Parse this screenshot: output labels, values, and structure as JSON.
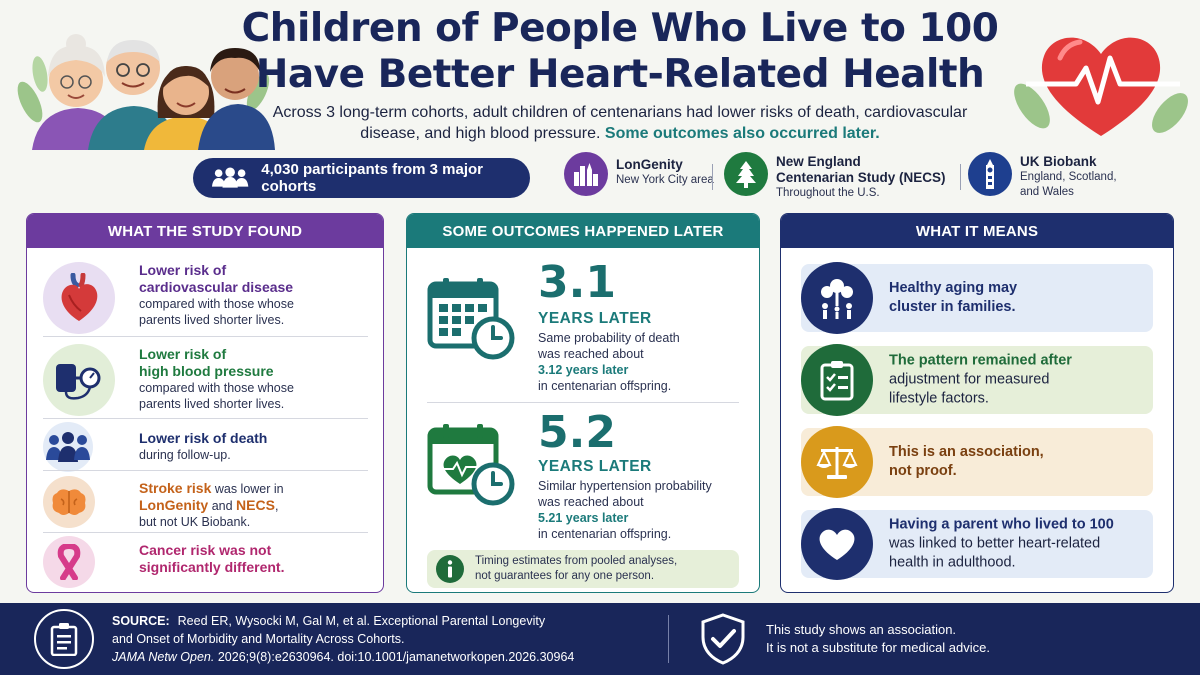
{
  "header": {
    "title_line1": "Children of People Who Live to 100",
    "title_line2": "Have Better Heart-Related Health",
    "subtitle_main": "Across 3 long-term cohorts, adult children of centenarians had lower risks of death, cardiovascular disease, and high blood pressure.",
    "subtitle_highlight": "Some outcomes also occurred later."
  },
  "cohorts": {
    "participants": "4,030 participants from 3 major cohorts",
    "items": [
      {
        "name": "LonGenity",
        "location": "New York City area",
        "icon": "city-skyline-icon",
        "color": "#6c3b9e"
      },
      {
        "name_line1": "New England",
        "name_line2": "Centenarian Study (NECS)",
        "location": "Throughout the U.S.",
        "icon": "pine-tree-icon",
        "color": "#1f7a3f"
      },
      {
        "name": "UK Biobank",
        "location_line1": "England, Scotland,",
        "location_line2": "and Wales",
        "icon": "big-ben-icon",
        "color": "#1e3f8f"
      }
    ]
  },
  "findings": {
    "title": "WHAT THE STUDY FOUND",
    "items": [
      {
        "bold_line1": "Lower risk of",
        "bold_line2": "cardiovascular disease",
        "desc_line1": "compared with those whose",
        "desc_line2": "parents lived shorter lives.",
        "color": "#5a2d8c",
        "icon": "heart-organ-icon"
      },
      {
        "bold_line1": "Lower risk of",
        "bold_line2": "high blood pressure",
        "desc_line1": "compared with those whose",
        "desc_line2": "parents lived shorter lives.",
        "color": "#1f7a3f",
        "icon": "blood-pressure-monitor-icon"
      },
      {
        "bold_line1": "Lower risk of death",
        "desc_line1": "during follow-up.",
        "color": "#1e2f6e",
        "icon": "people-group-icon"
      },
      {
        "bold_a": "Stroke risk",
        "text_a": " was lower in",
        "bold_b": "LonGenity",
        "text_b": " and ",
        "bold_c": "NECS",
        "text_c": ",",
        "desc_line": "but not UK Biobank.",
        "color": "#c4621a",
        "icon": "brain-icon"
      },
      {
        "bold_line1": "Cancer risk was not",
        "bold_line2": "significantly different.",
        "color": "#b0276e",
        "icon": "awareness-ribbon-icon"
      }
    ]
  },
  "later": {
    "title": "SOME OUTCOMES HAPPENED LATER",
    "items": [
      {
        "value": "3.1",
        "unit": "YEARS LATER",
        "desc_line1": "Same probability of death",
        "desc_line2": "was reached about",
        "highlight": "3.12 years later",
        "desc_line3": "in centenarian offspring.",
        "icon": "calendar-clock-icon"
      },
      {
        "value": "5.2",
        "unit": "YEARS LATER",
        "desc_line1": "Similar hypertension probability",
        "desc_line2": "was reached about",
        "highlight": "5.21 years later",
        "desc_line3": "in centenarian offspring.",
        "icon": "calendar-heart-clock-icon"
      }
    ],
    "note_line1": "Timing estimates from pooled analyses,",
    "note_line2": "not guarantees for any one person."
  },
  "meaning": {
    "title": "WHAT IT MEANS",
    "items": [
      {
        "bold_line1": "Healthy aging may",
        "bold_line2": "cluster in families.",
        "color": "#1e2f6e",
        "bg": "#e3ebf7",
        "icon": "family-tree-icon"
      },
      {
        "bold_line1": "The pattern remained after",
        "desc_line1": "adjustment for measured",
        "desc_line2": "lifestyle factors.",
        "color": "#1f6b3a",
        "bg": "#e6efd9",
        "icon": "clipboard-checklist-icon"
      },
      {
        "bold_line1": "This is an association,",
        "bold_line2": "not proof.",
        "color": "#7a4010",
        "bg": "#f8ecd8",
        "icon": "scales-icon"
      },
      {
        "bold_line1": "Having a parent who lived to 100",
        "desc_line1": "was linked to better heart-related",
        "desc_line2": "health in adulthood.",
        "color": "#1e2f6e",
        "bg": "#e3ebf7",
        "icon": "heart-icon"
      }
    ]
  },
  "footer": {
    "source_label": "SOURCE:",
    "source_line1": "Reed ER, Wysocki M, Gal M, et al. Exceptional Parental Longevity",
    "source_line2": "and Onset of Morbidity and Mortality Across Cohorts.",
    "journal": "JAMA Netw Open.",
    "citation": " 2026;9(8):e2630964. doi:10.1001/jamanetworkopen.2026.30964",
    "disclaimer_line1": "This study shows an association.",
    "disclaimer_line2": "It is not a substitute for medical advice."
  }
}
